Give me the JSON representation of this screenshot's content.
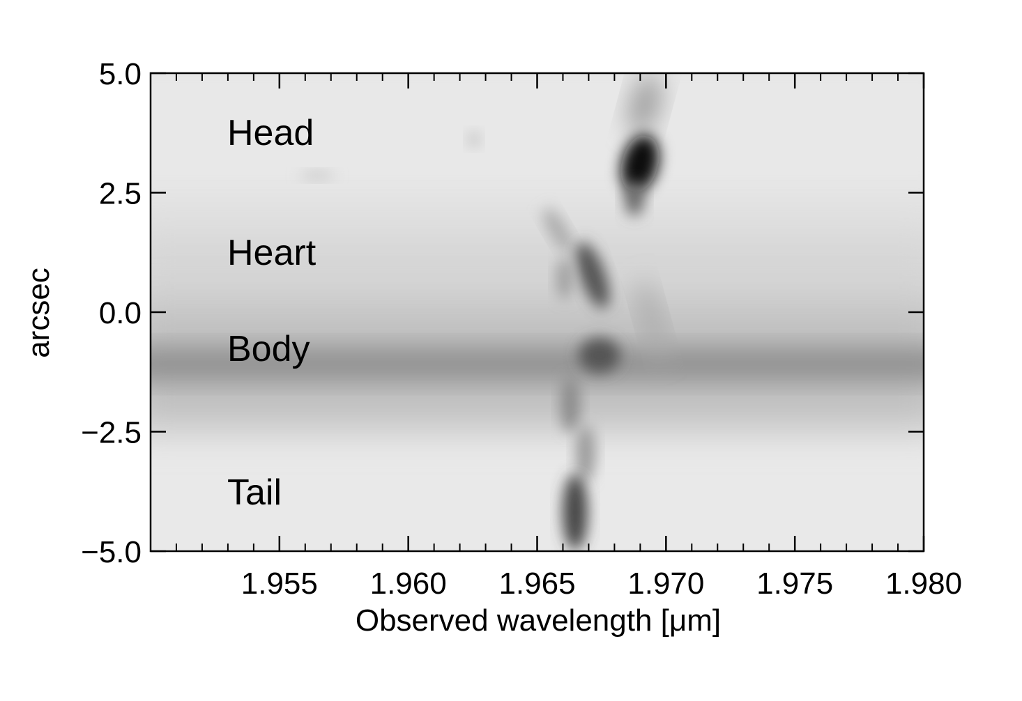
{
  "chart_data": {
    "type": "image",
    "xlabel": "Observed wavelength [μm]",
    "ylabel": "arcsec",
    "xlim": [
      1.95,
      1.98
    ],
    "ylim": [
      -5.0,
      5.0
    ],
    "xticks": [
      1.955,
      {
        "value": 1.96,
        "label": "1.960"
      },
      1.965,
      {
        "value": 1.97,
        "label": "1.970"
      },
      1.975,
      {
        "value": 1.98,
        "label": "1.980"
      }
    ],
    "xminorticks": [
      1.951,
      1.952,
      1.953,
      1.954,
      1.956,
      1.957,
      1.958,
      1.959,
      1.961,
      1.962,
      1.963,
      1.964,
      1.966,
      1.967,
      1.968,
      1.969,
      1.971,
      1.972,
      1.973,
      1.974,
      1.976,
      1.977,
      1.978,
      1.979
    ],
    "yticks": [
      {
        "value": 5.0,
        "label": "5.0"
      },
      2.5,
      {
        "value": 0.0,
        "label": "0.0"
      },
      {
        "value": -2.5,
        "label": "−2.5"
      },
      {
        "value": -5.0,
        "label": "−5.0"
      }
    ],
    "annotations": [
      "Head",
      "Heart",
      "Body",
      "Tail"
    ],
    "colormap": "gray_r"
  }
}
